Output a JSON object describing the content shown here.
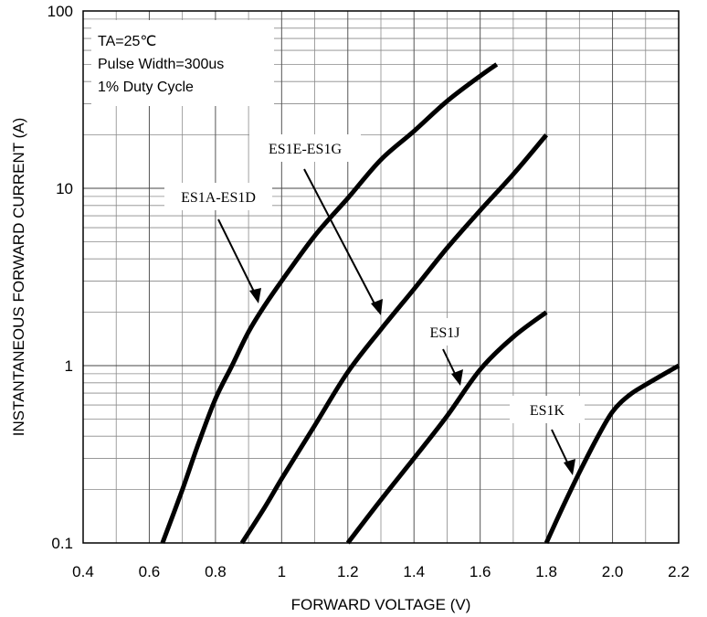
{
  "chart_data": {
    "type": "line",
    "xlabel": "FORWARD VOLTAGE (V)",
    "ylabel": "INSTANTANEOUS FORWARD CURRENT (A)",
    "xlim": [
      0.4,
      2.2
    ],
    "ylim": [
      0.1,
      100
    ],
    "yscale": "log",
    "grid": true,
    "x_ticks": [
      "0.4",
      "0.6",
      "0.8",
      "1",
      "1.2",
      "1.4",
      "1.6",
      "1.8",
      "2.0",
      "2.2"
    ],
    "y_ticks": [
      "0.1",
      "1",
      "10",
      "100"
    ],
    "conditions": [
      "TA=25℃",
      "Pulse Width=300us",
      "1% Duty Cycle"
    ],
    "series": [
      {
        "name": "ES1A-ES1D",
        "x": [
          0.64,
          0.7,
          0.75,
          0.8,
          0.85,
          0.9,
          0.95,
          1.0,
          1.1,
          1.2,
          1.3,
          1.4,
          1.5,
          1.6,
          1.65
        ],
        "y": [
          0.1,
          0.2,
          0.37,
          0.65,
          1.0,
          1.55,
          2.2,
          3.0,
          5.4,
          8.8,
          14.5,
          21,
          31,
          43,
          50
        ]
      },
      {
        "name": "ES1E-ES1G",
        "x": [
          0.88,
          0.95,
          1.0,
          1.1,
          1.2,
          1.3,
          1.4,
          1.5,
          1.6,
          1.7,
          1.8
        ],
        "y": [
          0.1,
          0.16,
          0.23,
          0.46,
          0.92,
          1.6,
          2.7,
          4.6,
          7.5,
          12,
          20
        ]
      },
      {
        "name": "ES1J",
        "x": [
          1.2,
          1.3,
          1.4,
          1.5,
          1.6,
          1.7,
          1.8
        ],
        "y": [
          0.1,
          0.175,
          0.3,
          0.52,
          0.95,
          1.45,
          2.0
        ]
      },
      {
        "name": "ES1K",
        "x": [
          1.8,
          1.85,
          1.9,
          1.95,
          2.0,
          2.05,
          2.1,
          2.2
        ],
        "y": [
          0.1,
          0.16,
          0.25,
          0.38,
          0.55,
          0.68,
          0.78,
          1.0
        ]
      }
    ]
  }
}
